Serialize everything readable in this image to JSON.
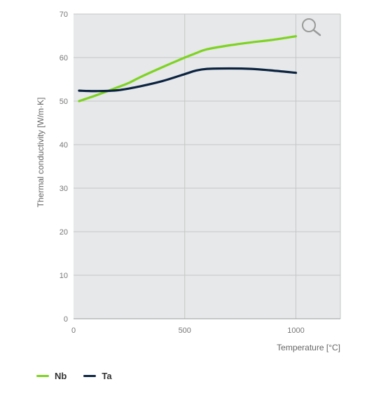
{
  "chart_data": {
    "type": "line",
    "xlabel": "Temperature [°C]",
    "ylabel": "Thermal conductivity [W/m·K]",
    "xlim": [
      0,
      1200
    ],
    "ylim": [
      0,
      70
    ],
    "xticks": [
      0,
      500,
      1000
    ],
    "yticks": [
      0,
      10,
      20,
      30,
      40,
      50,
      60,
      70
    ],
    "grid": true,
    "legend_position": "bottom-left",
    "series": [
      {
        "name": "Nb",
        "color": "#7ed321",
        "x": [
          25,
          100,
          200,
          250,
          300,
          400,
          500,
          550,
          600,
          700,
          800,
          900,
          1000
        ],
        "y": [
          50.0,
          51.3,
          53.2,
          54.2,
          55.5,
          57.8,
          60.0,
          61.0,
          61.9,
          62.8,
          63.5,
          64.1,
          64.9
        ]
      },
      {
        "name": "Ta",
        "color": "#0c2340",
        "x": [
          25,
          100,
          200,
          300,
          400,
          500,
          550,
          600,
          700,
          800,
          900,
          1000
        ],
        "y": [
          52.4,
          52.3,
          52.5,
          53.4,
          54.6,
          56.2,
          57.0,
          57.4,
          57.5,
          57.4,
          57.0,
          56.5
        ]
      }
    ]
  },
  "icons": {
    "zoom": "magnifier-icon"
  }
}
